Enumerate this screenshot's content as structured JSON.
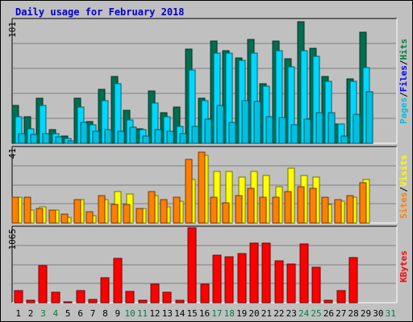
{
  "title": "Daily usage for February 2018",
  "colors": {
    "hits": "#006e4f",
    "files": "#00d7ff",
    "pages": "#00c0e0",
    "visits": "#ffff00",
    "sites": "#ff8000",
    "kbytes": "#ff0000",
    "weekend_label": "#008040",
    "weekday_label": "#000000"
  },
  "chart_data": [
    {
      "type": "bar",
      "panel": "hits-files-pages",
      "ylabel_max": "101",
      "ylim": [
        0,
        101
      ],
      "legend": [
        "Pages",
        "/",
        "Files",
        "/",
        "Hits"
      ],
      "legend_colors": [
        "#00c0e0",
        "#000000",
        "#0000ff",
        "#000000",
        "#008040"
      ],
      "categories": [
        "1",
        "2",
        "3",
        "4",
        "5",
        "6",
        "7",
        "8",
        "9",
        "10",
        "11",
        "12",
        "13",
        "14",
        "15",
        "16",
        "17",
        "18",
        "19",
        "20",
        "21",
        "22",
        "23",
        "24",
        "25",
        "26",
        "27",
        "28",
        "29",
        "30",
        "31"
      ],
      "series": [
        {
          "name": "Hits",
          "values": [
            31,
            22,
            37,
            11,
            6,
            37,
            18,
            44,
            55,
            27,
            12,
            43,
            25,
            30,
            77,
            37,
            84,
            76,
            70,
            85,
            49,
            84,
            69,
            100,
            78,
            55,
            16,
            53,
            91,
            0,
            0
          ]
        },
        {
          "name": "Files",
          "values": [
            22,
            12,
            31,
            8,
            4,
            30,
            15,
            35,
            49,
            19,
            11,
            33,
            22,
            14,
            60,
            35,
            74,
            74,
            68,
            74,
            47,
            76,
            63,
            76,
            71,
            51,
            16,
            51,
            62,
            0,
            0
          ]
        },
        {
          "name": "Pages",
          "values": [
            8,
            7,
            8,
            5,
            2,
            17,
            10,
            11,
            10,
            13,
            6,
            11,
            10,
            8,
            14,
            20,
            31,
            17,
            35,
            34,
            22,
            21,
            15,
            20,
            25,
            25,
            6,
            24,
            42,
            0,
            0
          ]
        }
      ]
    },
    {
      "type": "bar",
      "panel": "visits-sites",
      "ylabel_max": "41",
      "ylim": [
        0,
        41
      ],
      "legend": [
        "Sites",
        "/",
        "Visits"
      ],
      "legend_colors": [
        "#ff8000",
        "#000000",
        "#ffff00"
      ],
      "categories": [
        "1",
        "2",
        "3",
        "4",
        "5",
        "6",
        "7",
        "8",
        "9",
        "10",
        "11",
        "12",
        "13",
        "14",
        "15",
        "16",
        "17",
        "18",
        "19",
        "20",
        "21",
        "22",
        "23",
        "24",
        "25",
        "26",
        "27",
        "28",
        "29",
        "30",
        "31"
      ],
      "series": [
        {
          "name": "Visits",
          "values": [
            14,
            7,
            9,
            7,
            3,
            13,
            4,
            13,
            17,
            16,
            8,
            15,
            9,
            12,
            24,
            37,
            28,
            28,
            25,
            28,
            26,
            20,
            30,
            26,
            25,
            10,
            12,
            14,
            24,
            0,
            0
          ]
        },
        {
          "name": "Sites",
          "values": [
            14,
            14,
            8,
            7,
            5,
            13,
            6,
            15,
            10,
            10,
            8,
            17,
            13,
            14,
            35,
            39,
            14,
            11,
            15,
            19,
            14,
            14,
            17,
            20,
            19,
            14,
            13,
            15,
            22,
            0,
            0
          ]
        }
      ]
    },
    {
      "type": "bar",
      "panel": "kbytes",
      "ylabel_max": "1065",
      "ylim": [
        0,
        1065
      ],
      "legend": [
        "KBytes"
      ],
      "legend_colors": [
        "#ff0000"
      ],
      "categories": [
        "1",
        "2",
        "3",
        "4",
        "5",
        "6",
        "7",
        "8",
        "9",
        "10",
        "11",
        "12",
        "13",
        "14",
        "15",
        "16",
        "17",
        "18",
        "19",
        "20",
        "21",
        "22",
        "23",
        "24",
        "25",
        "26",
        "27",
        "28",
        "29",
        "30",
        "31"
      ],
      "series": [
        {
          "name": "KBytes",
          "values": [
            169,
            34,
            523,
            147,
            7,
            177,
            42,
            357,
            631,
            155,
            37,
            258,
            149,
            29,
            1065,
            264,
            676,
            650,
            697,
            847,
            847,
            590,
            553,
            836,
            507,
            37,
            169,
            641,
            0,
            0,
            0
          ]
        }
      ]
    }
  ],
  "weekend_days": [
    3,
    4,
    10,
    11,
    17,
    18,
    24,
    25,
    31
  ]
}
